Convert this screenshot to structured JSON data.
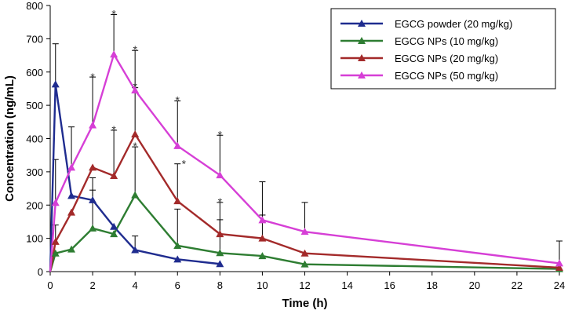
{
  "chart_data": {
    "type": "line",
    "title": "",
    "xlabel": "Time (h)",
    "ylabel": "Concentration (ng/mL)",
    "xlim": [
      0,
      24
    ],
    "ylim": [
      0,
      800
    ],
    "xticks": [
      0,
      2,
      4,
      6,
      8,
      10,
      12,
      14,
      16,
      18,
      20,
      22,
      24
    ],
    "yticks": [
      0,
      100,
      200,
      300,
      400,
      500,
      600,
      700,
      800
    ],
    "legend_position": "top-right",
    "grid": false,
    "series": [
      {
        "name": "EGCG powder (20 mg/kg)",
        "color": "#1f2c8f",
        "x": [
          0,
          0.25,
          1,
          2,
          3,
          4,
          6,
          8
        ],
        "y": [
          0,
          563,
          228,
          215,
          135,
          65,
          37,
          23
        ],
        "err": [
          0,
          122,
          0,
          30,
          0,
          42,
          0,
          0
        ]
      },
      {
        "name": "EGCG NPs (10 mg/kg)",
        "color": "#2e7d32",
        "x": [
          0,
          0.25,
          1,
          2,
          3,
          4,
          6,
          8,
          10,
          12,
          24
        ],
        "y": [
          0,
          55,
          67,
          130,
          113,
          230,
          78,
          56,
          47,
          22,
          8
        ],
        "err": [
          0,
          0,
          0,
          152,
          0,
          145,
          110,
          100,
          0,
          0,
          0
        ]
      },
      {
        "name": "EGCG NPs (20 mg/kg)",
        "color": "#a32a2a",
        "x": [
          0,
          0.25,
          1,
          2,
          3,
          4,
          6,
          8,
          10,
          12,
          24
        ],
        "y": [
          0,
          90,
          178,
          313,
          288,
          413,
          212,
          113,
          100,
          55,
          12
        ],
        "err": [
          0,
          50,
          0,
          0,
          137,
          140,
          112,
          95,
          70,
          0,
          0
        ]
      },
      {
        "name": "EGCG NPs (50 mg/kg)",
        "color": "#d63fd6",
        "x": [
          0,
          0.25,
          1,
          2,
          3,
          4,
          6,
          8,
          10,
          12,
          24
        ],
        "y": [
          0,
          207,
          313,
          440,
          653,
          545,
          378,
          290,
          155,
          120,
          25
        ],
        "err": [
          0,
          130,
          122,
          145,
          120,
          120,
          135,
          120,
          115,
          88,
          67
        ]
      }
    ],
    "annotations": [
      {
        "text": "*",
        "x": 2,
        "y": 583
      },
      {
        "text": "*",
        "x": 3,
        "y": 773
      },
      {
        "text": "*",
        "x": 3,
        "y": 425
      },
      {
        "text": "*",
        "x": 4,
        "y": 665
      },
      {
        "text": "*",
        "x": 4,
        "y": 555
      },
      {
        "text": "*",
        "x": 4,
        "y": 375
      },
      {
        "text": "*",
        "x": 6,
        "y": 513
      },
      {
        "text": "*",
        "x": 6.3,
        "y": 322
      },
      {
        "text": "*",
        "x": 8,
        "y": 410
      },
      {
        "text": "*",
        "x": 8,
        "y": 208
      }
    ]
  }
}
